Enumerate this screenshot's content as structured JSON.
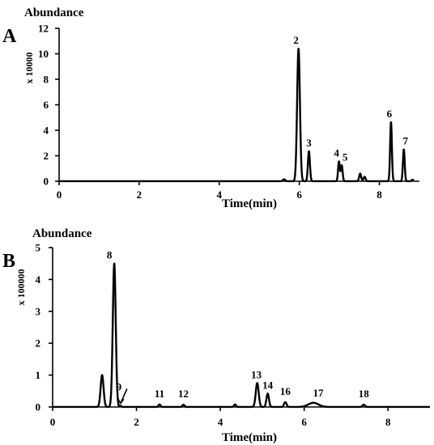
{
  "chart_data": [
    {
      "type": "line",
      "panel_label": "A",
      "title": "Abundance",
      "ylabel": "x 10000",
      "xlabel": "Time(min)",
      "xlim": [
        0,
        9
      ],
      "ylim": [
        0,
        12
      ],
      "xticks": [
        0,
        2,
        4,
        6,
        8
      ],
      "yticks": [
        0,
        2,
        4,
        6,
        8,
        10,
        12
      ],
      "grid": false,
      "peaks": [
        {
          "label": "",
          "t": 5.62,
          "h": 0.15,
          "w": 0.03
        },
        {
          "label": "2",
          "t": 5.98,
          "h": 10.4,
          "w": 0.035
        },
        {
          "label": "3",
          "t": 6.24,
          "h": 2.35,
          "w": 0.025
        },
        {
          "label": "4",
          "t": 6.99,
          "h": 1.55,
          "w": 0.022
        },
        {
          "label": "5",
          "t": 7.06,
          "h": 1.25,
          "w": 0.022
        },
        {
          "label": "",
          "t": 7.52,
          "h": 0.6,
          "w": 0.025
        },
        {
          "label": "",
          "t": 7.63,
          "h": 0.35,
          "w": 0.025
        },
        {
          "label": "6",
          "t": 8.29,
          "h": 4.65,
          "w": 0.022
        },
        {
          "label": "7",
          "t": 8.61,
          "h": 2.5,
          "w": 0.022
        },
        {
          "label": "",
          "t": 8.83,
          "h": 0.12,
          "w": 0.025
        }
      ]
    },
    {
      "type": "line",
      "panel_label": "B",
      "title": "Abundance",
      "ylabel": "x 100000",
      "xlabel": "Time(min)",
      "xlim": [
        0,
        9
      ],
      "ylim": [
        0,
        5
      ],
      "xticks": [
        0,
        2,
        4,
        6,
        8
      ],
      "yticks": [
        0,
        1,
        2,
        3,
        4,
        5
      ],
      "grid": false,
      "peaks": [
        {
          "label": "",
          "t": 1.18,
          "h": 1.0,
          "w": 0.035
        },
        {
          "label": "8",
          "t": 1.47,
          "h": 4.5,
          "w": 0.035
        },
        {
          "label": "9",
          "t": 1.62,
          "h": 0.04,
          "w": 0.02
        },
        {
          "label": "11",
          "t": 2.55,
          "h": 0.08,
          "w": 0.025
        },
        {
          "label": "12",
          "t": 3.12,
          "h": 0.07,
          "w": 0.025
        },
        {
          "label": "",
          "t": 4.35,
          "h": 0.08,
          "w": 0.025
        },
        {
          "label": "13",
          "t": 4.88,
          "h": 0.75,
          "w": 0.035
        },
        {
          "label": "14",
          "t": 5.13,
          "h": 0.42,
          "w": 0.03
        },
        {
          "label": "16",
          "t": 5.55,
          "h": 0.15,
          "w": 0.03
        },
        {
          "label": "17",
          "t": 6.22,
          "h": 0.13,
          "w": 0.12
        },
        {
          "label": "18",
          "t": 7.42,
          "h": 0.07,
          "w": 0.03
        }
      ]
    }
  ]
}
